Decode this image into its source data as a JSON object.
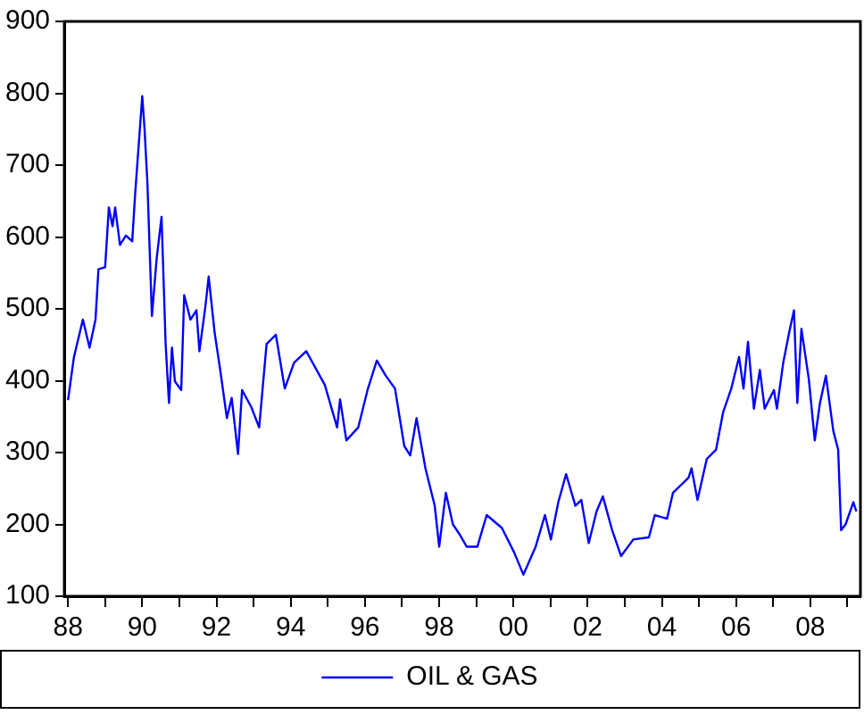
{
  "chart_data": {
    "type": "line",
    "x": [
      1988.0,
      1988.16,
      1988.4,
      1988.58,
      1988.74,
      1988.82,
      1989.0,
      1989.1,
      1989.2,
      1989.27,
      1989.4,
      1989.56,
      1989.73,
      1989.81,
      1990.0,
      1990.06,
      1990.14,
      1990.26,
      1990.39,
      1990.52,
      1990.63,
      1990.72,
      1990.8,
      1990.88,
      1991.05,
      1991.13,
      1991.3,
      1991.46,
      1991.54,
      1991.7,
      1991.79,
      1991.95,
      1992.1,
      1992.28,
      1992.41,
      1992.58,
      1992.69,
      1992.94,
      1993.15,
      1993.35,
      1993.6,
      1993.84,
      1994.09,
      1994.42,
      1994.92,
      1995.25,
      1995.33,
      1995.5,
      1995.82,
      1996.07,
      1996.32,
      1996.56,
      1996.81,
      1997.06,
      1997.22,
      1997.39,
      1997.63,
      1997.88,
      1998.0,
      1998.18,
      1998.37,
      1998.54,
      1998.74,
      1999.03,
      1999.28,
      1999.69,
      2000.02,
      2000.27,
      2000.6,
      2000.85,
      2001.01,
      2001.21,
      2001.42,
      2001.67,
      2001.83,
      2002.03,
      2002.24,
      2002.41,
      2002.66,
      2002.9,
      2003.23,
      2003.65,
      2003.81,
      2004.14,
      2004.3,
      2004.72,
      2004.8,
      2004.96,
      2005.21,
      2005.46,
      2005.65,
      2005.87,
      2006.08,
      2006.2,
      2006.32,
      2006.48,
      2006.64,
      2006.77,
      2007.02,
      2007.1,
      2007.27,
      2007.43,
      2007.56,
      2007.65,
      2007.76,
      2007.96,
      2008.12,
      2008.26,
      2008.42,
      2008.62,
      2008.75,
      2008.83,
      2008.95,
      2009.16,
      2009.24
    ],
    "series": [
      {
        "name": "OIL & GAS",
        "color": "#0000ff",
        "values": [
          373,
          433,
          485,
          446,
          485,
          555,
          558,
          641,
          615,
          641,
          589,
          602,
          594,
          661,
          796,
          752,
          674,
          490,
          571,
          628,
          451,
          369,
          446,
          399,
          387,
          519,
          485,
          498,
          441,
          503,
          545,
          467,
          415,
          348,
          376,
          298,
          387,
          363,
          335,
          451,
          464,
          389,
          425,
          441,
          394,
          335,
          374,
          317,
          335,
          387,
          428,
          407,
          389,
          309,
          296,
          348,
          278,
          226,
          169,
          244,
          200,
          187,
          169,
          169,
          213,
          195,
          161,
          130,
          169,
          213,
          179,
          231,
          270,
          226,
          234,
          174,
          218,
          239,
          192,
          156,
          179,
          182,
          213,
          208,
          244,
          265,
          278,
          234,
          291,
          304,
          356,
          389,
          433,
          389,
          454,
          361,
          415,
          361,
          387,
          361,
          425,
          467,
          498,
          369,
          472,
          402,
          317,
          369,
          407,
          330,
          304,
          192,
          200,
          231,
          218
        ]
      }
    ],
    "xlim": [
      1987.9,
      2009.35
    ],
    "xticks": [
      {
        "value": 1988,
        "label": "88"
      },
      {
        "value": 1989,
        "label": null
      },
      {
        "value": 1990,
        "label": "90"
      },
      {
        "value": 1991,
        "label": null
      },
      {
        "value": 1992,
        "label": "92"
      },
      {
        "value": 1993,
        "label": null
      },
      {
        "value": 1994,
        "label": "94"
      },
      {
        "value": 1995,
        "label": null
      },
      {
        "value": 1996,
        "label": "96"
      },
      {
        "value": 1997,
        "label": null
      },
      {
        "value": 1998,
        "label": "98"
      },
      {
        "value": 1999,
        "label": null
      },
      {
        "value": 2000,
        "label": "00"
      },
      {
        "value": 2001,
        "label": null
      },
      {
        "value": 2002,
        "label": "02"
      },
      {
        "value": 2003,
        "label": null
      },
      {
        "value": 2004,
        "label": "04"
      },
      {
        "value": 2005,
        "label": null
      },
      {
        "value": 2006,
        "label": "06"
      },
      {
        "value": 2007,
        "label": null
      },
      {
        "value": 2008,
        "label": "08"
      },
      {
        "value": 2009,
        "label": null
      }
    ],
    "ylim": [
      100,
      900
    ],
    "yticks": [
      100,
      200,
      300,
      400,
      500,
      600,
      700,
      800,
      900
    ],
    "grid": false,
    "legend": "bottom",
    "marker": "none",
    "line_style": "solid"
  }
}
